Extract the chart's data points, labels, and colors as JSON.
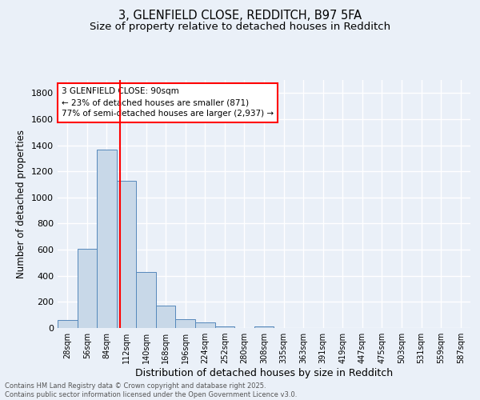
{
  "title_line1": "3, GLENFIELD CLOSE, REDDITCH, B97 5FA",
  "title_line2": "Size of property relative to detached houses in Redditch",
  "xlabel": "Distribution of detached houses by size in Redditch",
  "ylabel": "Number of detached properties",
  "bins": [
    "28sqm",
    "56sqm",
    "84sqm",
    "112sqm",
    "140sqm",
    "168sqm",
    "196sqm",
    "224sqm",
    "252sqm",
    "280sqm",
    "308sqm",
    "335sqm",
    "363sqm",
    "391sqm",
    "419sqm",
    "447sqm",
    "475sqm",
    "503sqm",
    "531sqm",
    "559sqm",
    "587sqm"
  ],
  "bar_values": [
    60,
    605,
    1365,
    1130,
    430,
    170,
    70,
    40,
    15,
    0,
    15,
    0,
    0,
    0,
    0,
    0,
    0,
    0,
    0,
    0,
    0
  ],
  "bar_color": "#c8d8e8",
  "bar_edgecolor": "#5588bb",
  "red_line_x": 2.67,
  "annotation_text": "3 GLENFIELD CLOSE: 90sqm\n← 23% of detached houses are smaller (871)\n77% of semi-detached houses are larger (2,937) →",
  "annotation_box_color": "white",
  "annotation_box_edgecolor": "red",
  "red_line_color": "red",
  "ylim": [
    0,
    1900
  ],
  "yticks": [
    0,
    200,
    400,
    600,
    800,
    1000,
    1200,
    1400,
    1600,
    1800
  ],
  "background_color": "#eaf0f8",
  "grid_color": "white",
  "footer_text": "Contains HM Land Registry data © Crown copyright and database right 2025.\nContains public sector information licensed under the Open Government Licence v3.0.",
  "title_fontsize": 10.5,
  "subtitle_fontsize": 9.5,
  "footer_fontsize": 6.0
}
